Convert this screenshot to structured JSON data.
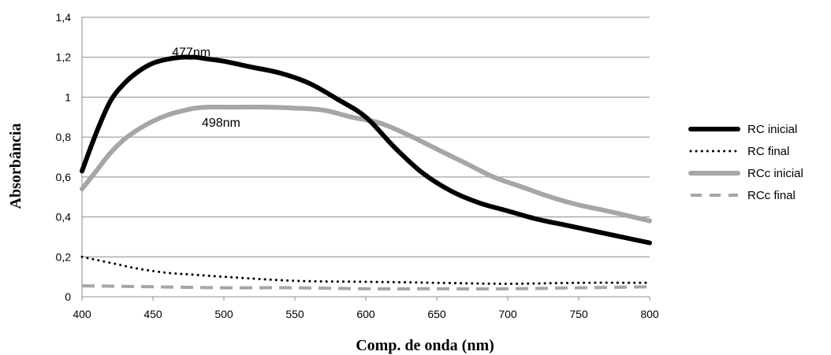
{
  "chart_data": {
    "type": "line",
    "title": "",
    "xlabel": "Comp. de onda (nm)",
    "ylabel": "Absorbância",
    "xlim": [
      400,
      800
    ],
    "ylim": [
      0,
      1.4
    ],
    "x_ticks": [
      "400",
      "450",
      "500",
      "550",
      "600",
      "650",
      "700",
      "750",
      "800"
    ],
    "y_ticks": [
      "0",
      "0,2",
      "0,4",
      "0,6",
      "0,8",
      "1",
      "1,2",
      "1,4"
    ],
    "grid": "horizontal",
    "legend_position": "right",
    "annotations": [
      {
        "text": "477nm",
        "x": 477,
        "y": 1.2
      },
      {
        "text": "498nm",
        "x": 498,
        "y": 0.95
      }
    ],
    "series": [
      {
        "name": "RC inicial",
        "color": "#000000",
        "style": "solid-thick",
        "x": [
          400,
          410,
          420,
          430,
          440,
          450,
          460,
          470,
          477,
          480,
          490,
          500,
          520,
          540,
          560,
          580,
          600,
          620,
          640,
          660,
          680,
          700,
          720,
          740,
          760,
          780,
          800
        ],
        "y": [
          0.63,
          0.82,
          0.98,
          1.07,
          1.13,
          1.17,
          1.19,
          1.2,
          1.2,
          1.2,
          1.19,
          1.18,
          1.15,
          1.12,
          1.07,
          0.99,
          0.9,
          0.75,
          0.62,
          0.53,
          0.47,
          0.43,
          0.39,
          0.36,
          0.33,
          0.3,
          0.27
        ]
      },
      {
        "name": "RC final",
        "color": "#000000",
        "style": "dotted",
        "x": [
          400,
          420,
          440,
          460,
          480,
          500,
          550,
          600,
          650,
          700,
          750,
          800
        ],
        "y": [
          0.2,
          0.17,
          0.14,
          0.12,
          0.11,
          0.1,
          0.08,
          0.075,
          0.07,
          0.065,
          0.07,
          0.07
        ]
      },
      {
        "name": "RCc inicial",
        "color": "#a6a6a6",
        "style": "solid-thick",
        "x": [
          400,
          410,
          420,
          430,
          440,
          450,
          460,
          470,
          480,
          490,
          498,
          510,
          530,
          550,
          570,
          590,
          610,
          630,
          650,
          670,
          690,
          710,
          730,
          750,
          770,
          800
        ],
        "y": [
          0.54,
          0.63,
          0.72,
          0.79,
          0.84,
          0.88,
          0.91,
          0.93,
          0.945,
          0.95,
          0.95,
          0.95,
          0.95,
          0.945,
          0.935,
          0.9,
          0.87,
          0.81,
          0.74,
          0.67,
          0.6,
          0.55,
          0.5,
          0.46,
          0.43,
          0.38
        ]
      },
      {
        "name": "RCc final",
        "color": "#a6a6a6",
        "style": "dashed",
        "x": [
          400,
          450,
          500,
          550,
          600,
          650,
          700,
          750,
          800
        ],
        "y": [
          0.055,
          0.05,
          0.045,
          0.045,
          0.04,
          0.04,
          0.04,
          0.045,
          0.05
        ]
      }
    ]
  }
}
